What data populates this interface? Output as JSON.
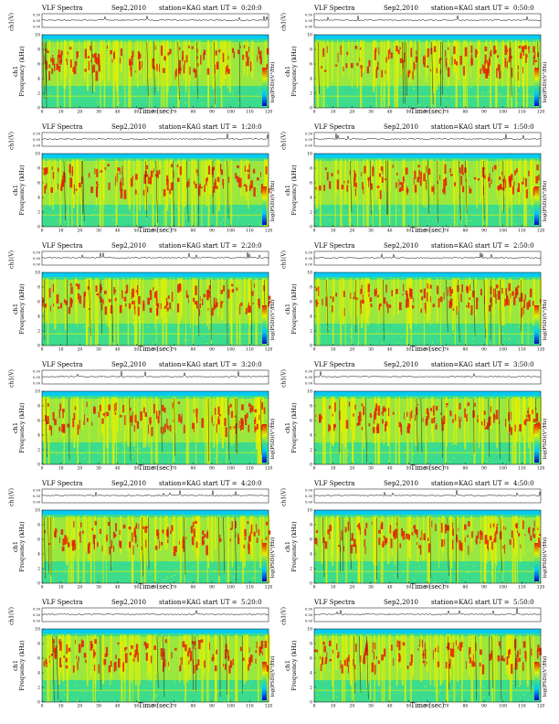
{
  "common": {
    "program": "VLF Spectra",
    "date": "Sep2,2010",
    "station": "station=KAG",
    "start_label": "start UT =",
    "top_ylabel": "ch1(V)",
    "spec_ylabel_channel": "ch1",
    "spec_ylabel": "Frequency (kHz)",
    "xlabel": "Time (sec)",
    "colorbar_label": "log(PSD)(V²/Hz)",
    "top_ticks": [
      "0.00",
      "0.30",
      "0.50"
    ],
    "freq_ticks": [
      "0",
      "2",
      "4",
      "6",
      "8",
      "10"
    ],
    "time_ticks": [
      "0",
      "10",
      "20",
      "30",
      "40",
      "50",
      "60",
      "70",
      "80",
      "90",
      "100",
      "110",
      "120"
    ]
  },
  "colors": {
    "low": "#0a00c8",
    "mid_low": "#00c8ff",
    "background": "#3cdc8c",
    "mid_high": "#e6f000",
    "high": "#e61e00"
  },
  "chart_data": [
    {
      "type": "heatmap",
      "start_ut": "0:20:0",
      "xlim": [
        0,
        120
      ],
      "ylim": [
        0,
        10
      ],
      "intensity_band_khz": [
        4,
        9
      ]
    },
    {
      "type": "heatmap",
      "start_ut": "0:50:0",
      "xlim": [
        0,
        120
      ],
      "ylim": [
        0,
        10
      ],
      "intensity_band_khz": [
        4,
        9
      ]
    },
    {
      "type": "heatmap",
      "start_ut": "1:20:0",
      "xlim": [
        0,
        120
      ],
      "ylim": [
        0,
        10
      ],
      "intensity_band_khz": [
        4,
        9
      ]
    },
    {
      "type": "heatmap",
      "start_ut": "1:50:0",
      "xlim": [
        0,
        120
      ],
      "ylim": [
        0,
        10
      ],
      "intensity_band_khz": [
        4,
        9
      ]
    },
    {
      "type": "heatmap",
      "start_ut": "2:20:0",
      "xlim": [
        0,
        120
      ],
      "ylim": [
        0,
        10
      ],
      "intensity_band_khz": [
        4,
        9
      ]
    },
    {
      "type": "heatmap",
      "start_ut": "2:50:0",
      "xlim": [
        0,
        120
      ],
      "ylim": [
        0,
        10
      ],
      "intensity_band_khz": [
        4,
        9
      ]
    },
    {
      "type": "heatmap",
      "start_ut": "3:20:0",
      "xlim": [
        0,
        120
      ],
      "ylim": [
        0,
        10
      ],
      "intensity_band_khz": [
        4,
        9
      ]
    },
    {
      "type": "heatmap",
      "start_ut": "3:50:0",
      "xlim": [
        0,
        120
      ],
      "ylim": [
        0,
        10
      ],
      "intensity_band_khz": [
        4,
        9
      ]
    },
    {
      "type": "heatmap",
      "start_ut": "4:20:0",
      "xlim": [
        0,
        120
      ],
      "ylim": [
        0,
        10
      ],
      "intensity_band_khz": [
        4,
        9
      ]
    },
    {
      "type": "heatmap",
      "start_ut": "4:50:0",
      "xlim": [
        0,
        120
      ],
      "ylim": [
        0,
        10
      ],
      "intensity_band_khz": [
        4,
        9
      ]
    },
    {
      "type": "heatmap",
      "start_ut": "5:20:0",
      "xlim": [
        0,
        120
      ],
      "ylim": [
        0,
        10
      ],
      "intensity_band_khz": [
        4,
        9
      ]
    },
    {
      "type": "heatmap",
      "start_ut": "5:50:0",
      "xlim": [
        0,
        120
      ],
      "ylim": [
        0,
        10
      ],
      "intensity_band_khz": [
        4,
        9
      ]
    }
  ]
}
